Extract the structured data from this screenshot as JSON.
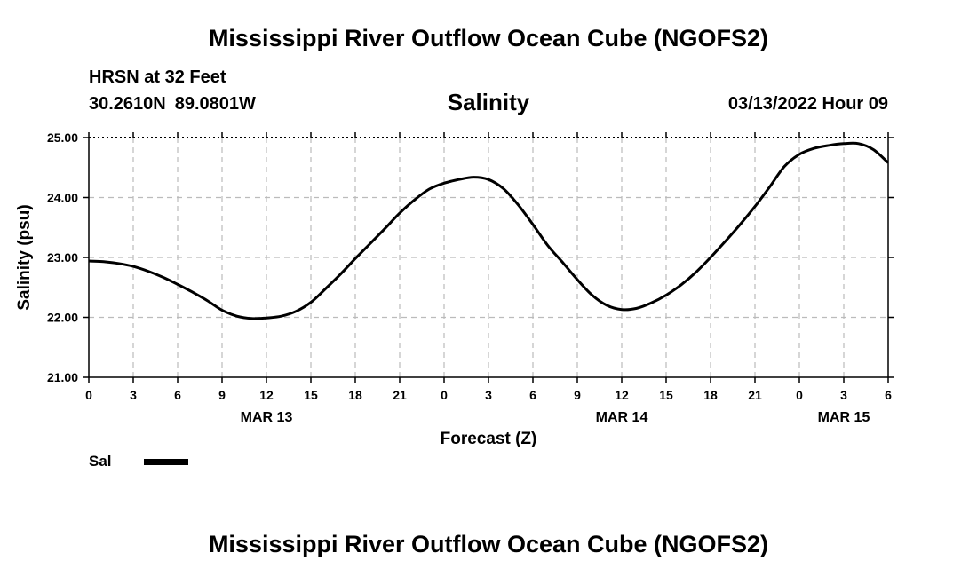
{
  "header": {
    "title": "Mississippi River Outflow Ocean Cube (NGOFS2)",
    "station": "HRSN at 32 Feet",
    "lat": "30.2610N",
    "lon": "89.0801W",
    "variable": "Salinity",
    "datetime": "03/13/2022 Hour 09"
  },
  "footer": {
    "title": "Mississippi River Outflow Ocean Cube (NGOFS2)"
  },
  "legend": {
    "label": "Sal",
    "color": "#000000"
  },
  "chart_data": {
    "type": "line",
    "title": "Salinity",
    "xlabel": "Forecast (Z)",
    "ylabel": "Salinity (psu)",
    "ylim": [
      21.0,
      25.0
    ],
    "xlim": [
      0,
      54
    ],
    "y_ticks": [
      "21.00",
      "22.00",
      "23.00",
      "24.00",
      "25.00"
    ],
    "x_tick_labels": [
      "0",
      "3",
      "6",
      "9",
      "12",
      "15",
      "18",
      "21",
      "0",
      "3",
      "6",
      "9",
      "12",
      "15",
      "18",
      "21",
      "0",
      "3",
      "6"
    ],
    "date_labels": [
      {
        "label": "MAR 13",
        "hour": 12
      },
      {
        "label": "MAR 14",
        "hour": 36
      },
      {
        "label": "MAR 15",
        "hour": 51
      }
    ],
    "series": [
      {
        "name": "Sal",
        "x": [
          0,
          1,
          2,
          3,
          4,
          5,
          6,
          7,
          8,
          9,
          10,
          11,
          12,
          13,
          14,
          15,
          16,
          17,
          18,
          19,
          20,
          21,
          22,
          23,
          24,
          25,
          26,
          27,
          28,
          29,
          30,
          31,
          32,
          33,
          34,
          35,
          36,
          37,
          38,
          39,
          40,
          41,
          42,
          43,
          44,
          45,
          46,
          47,
          48,
          49,
          50,
          51,
          52,
          53,
          54
        ],
        "values": [
          22.94,
          22.93,
          22.9,
          22.85,
          22.77,
          22.67,
          22.55,
          22.42,
          22.28,
          22.12,
          22.02,
          21.98,
          21.99,
          22.02,
          22.1,
          22.25,
          22.48,
          22.72,
          22.98,
          23.23,
          23.48,
          23.74,
          23.96,
          24.14,
          24.24,
          24.3,
          24.34,
          24.3,
          24.15,
          23.88,
          23.55,
          23.2,
          22.92,
          22.63,
          22.37,
          22.2,
          22.13,
          22.15,
          22.24,
          22.37,
          22.54,
          22.75,
          23.0,
          23.27,
          23.55,
          23.85,
          24.18,
          24.52,
          24.72,
          24.82,
          24.87,
          24.9,
          24.9,
          24.8,
          24.58
        ]
      }
    ]
  }
}
